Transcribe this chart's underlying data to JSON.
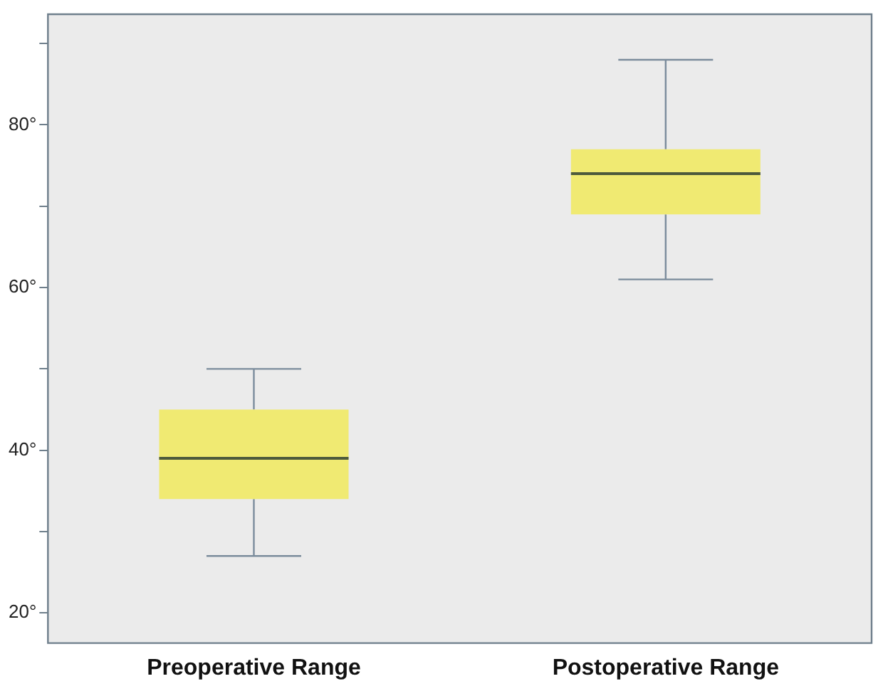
{
  "chart_data": {
    "type": "box",
    "categories": [
      "Preoperative Range",
      "Postoperative Range"
    ],
    "series": [
      {
        "color": "#f0ea72",
        "boxes": [
          {
            "low": 27,
            "q1": 34,
            "median": 39,
            "q3": 45,
            "high": 50
          },
          {
            "low": 61,
            "q1": 69,
            "median": 74,
            "q3": 77,
            "high": 88
          }
        ]
      }
    ],
    "ylim": [
      16.3,
      93.6
    ],
    "yticks": [
      {
        "value": 20,
        "label": "20°"
      },
      {
        "value": 30,
        "label": null
      },
      {
        "value": 40,
        "label": "40°"
      },
      {
        "value": 50,
        "label": null
      },
      {
        "value": 60,
        "label": "60°"
      },
      {
        "value": 70,
        "label": null
      },
      {
        "value": 80,
        "label": "80°"
      },
      {
        "value": 90,
        "label": null
      }
    ],
    "grid": false,
    "legend": false
  }
}
